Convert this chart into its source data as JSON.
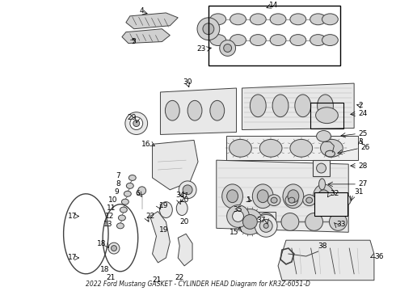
{
  "title": "2022 Ford Mustang GASKET - CYLINDER HEAD Diagram for KR3Z-6051-D",
  "bg": "#ffffff",
  "fw": 4.9,
  "fh": 3.6,
  "dpi": 100,
  "lc": "#404040",
  "lw": 0.7,
  "fc_light": "#e8e8e8",
  "fc_med": "#d0d0d0",
  "fc_dark": "#b8b8b8",
  "label_fs": 6.0,
  "label_color": "#000000"
}
